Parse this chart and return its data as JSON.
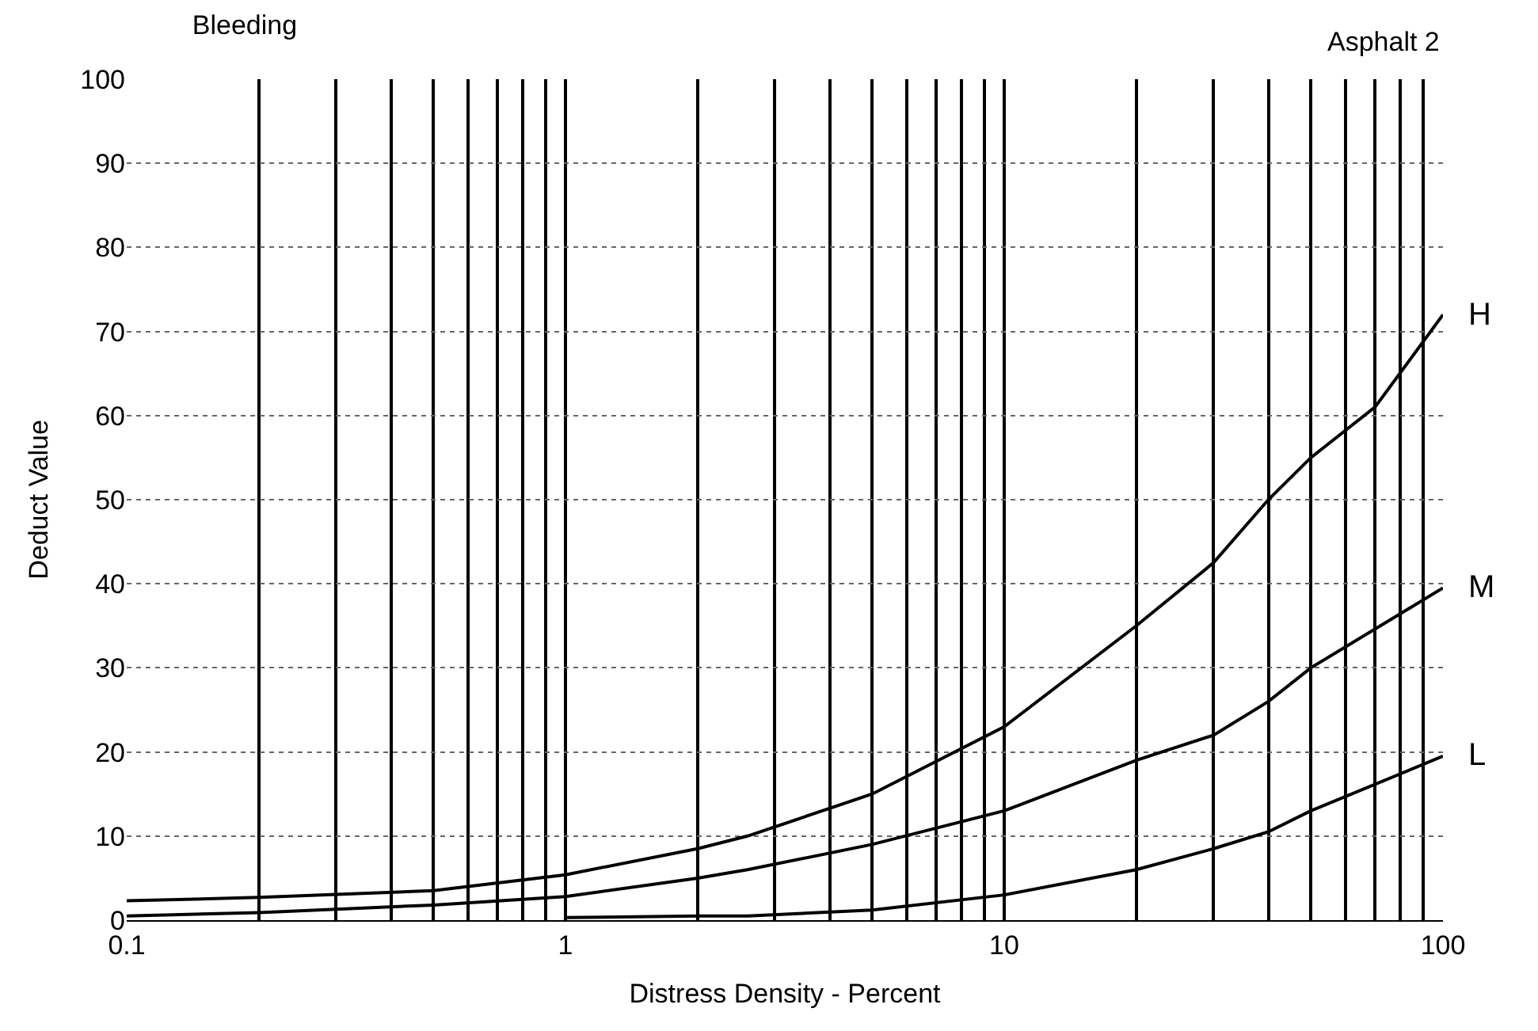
{
  "chart_data": {
    "type": "line",
    "title": "Bleeding",
    "xlabel": "Distress Density - Percent",
    "ylabel": "Deduct Value",
    "annotations": [
      "Asphalt 2"
    ],
    "log": "x",
    "xlim": [
      0.1,
      100
    ],
    "ylim": [
      0,
      100
    ],
    "xticks": [
      0.1,
      {
        "value": 0.2,
        "label": null
      },
      {
        "value": 0.3,
        "label": null
      },
      {
        "value": 0.4,
        "label": null
      },
      {
        "value": 0.5,
        "label": null
      },
      {
        "value": 0.6,
        "label": null
      },
      {
        "value": 0.7,
        "label": null
      },
      {
        "value": 0.8,
        "label": null
      },
      {
        "value": 0.9,
        "label": null
      },
      1,
      {
        "value": 2,
        "label": null
      },
      {
        "value": 3,
        "label": null
      },
      {
        "value": 4,
        "label": null
      },
      {
        "value": 5,
        "label": null
      },
      {
        "value": 6,
        "label": null
      },
      {
        "value": 7,
        "label": null
      },
      {
        "value": 8,
        "label": null
      },
      {
        "value": 9,
        "label": null
      },
      10,
      {
        "value": 20,
        "label": null
      },
      {
        "value": 30,
        "label": null
      },
      {
        "value": 40,
        "label": null
      },
      {
        "value": 50,
        "label": null
      },
      {
        "value": 60,
        "label": null
      },
      {
        "value": 70,
        "label": null
      },
      {
        "value": 80,
        "label": null
      },
      {
        "value": 90,
        "label": null
      },
      100
    ],
    "yticks": [
      0,
      10,
      20,
      30,
      40,
      50,
      60,
      70,
      80,
      90,
      100
    ],
    "grid": true,
    "legend": false,
    "marker": "none",
    "line_style": "solid",
    "series": [
      {
        "name": "H",
        "color": "#000000",
        "x": [
          0.1,
          0.2,
          0.5,
          1,
          2,
          2.6,
          5,
          10,
          20,
          30,
          40,
          50,
          70,
          100
        ],
        "values": [
          2.3,
          2.7,
          3.5,
          5.4,
          8.5,
          10,
          15,
          23,
          35,
          42.5,
          50,
          55,
          61,
          72
        ]
      },
      {
        "name": "M",
        "color": "#000000",
        "x": [
          0.1,
          0.2,
          0.5,
          1,
          2,
          2.6,
          5,
          10,
          20,
          30,
          40,
          50,
          100
        ],
        "values": [
          0.5,
          0.9,
          1.8,
          2.8,
          5,
          6,
          9,
          13,
          19,
          22,
          26,
          30,
          39.5
        ]
      },
      {
        "name": "L",
        "color": "#000000",
        "x": [
          1,
          2,
          2.6,
          5,
          10,
          20,
          30,
          40,
          50,
          100
        ],
        "values": [
          0.3,
          0.5,
          0.5,
          1.2,
          3,
          6,
          8.5,
          10.5,
          13,
          19.5
        ]
      }
    ]
  }
}
